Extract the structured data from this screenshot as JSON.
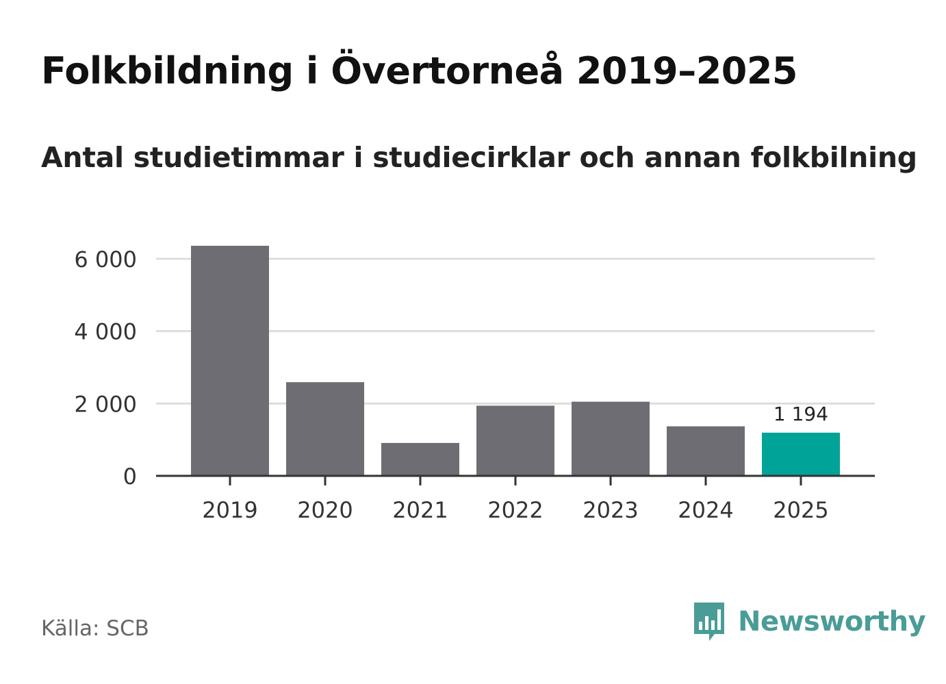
{
  "header": {
    "title": "Folkbildning i Övertorneå 2019–2025",
    "subtitle": "Antal studietimmar i studiecirklar och annan folkbilning"
  },
  "footer": {
    "source": "Källa: SCB",
    "brand": "Newsworthy",
    "brand_icon": "newsworthy-chart-bubble-icon"
  },
  "colors": {
    "bar": "#6e6d73",
    "highlight": "#00a398",
    "grid": "#dddddd",
    "axis": "#333333",
    "brand": "#4a9c97"
  },
  "chart_data": {
    "type": "bar",
    "title": "Folkbildning i Övertorneå 2019–2025",
    "subtitle": "Antal studietimmar i studiecirklar och annan folkbilning",
    "categories": [
      "2019",
      "2020",
      "2021",
      "2022",
      "2023",
      "2024",
      "2025"
    ],
    "values": [
      6360,
      2590,
      910,
      1940,
      2050,
      1370,
      1194
    ],
    "highlight_index": 6,
    "data_labels": [
      {
        "index": 6,
        "text": "1 194"
      }
    ],
    "yticks": [
      {
        "value": 0,
        "label": "0"
      },
      {
        "value": 2000,
        "label": "2 000"
      },
      {
        "value": 4000,
        "label": "4 000"
      },
      {
        "value": 6000,
        "label": "6 000"
      }
    ],
    "ylim": [
      0,
      6500
    ],
    "grid": true,
    "xlabel": "",
    "ylabel": ""
  }
}
